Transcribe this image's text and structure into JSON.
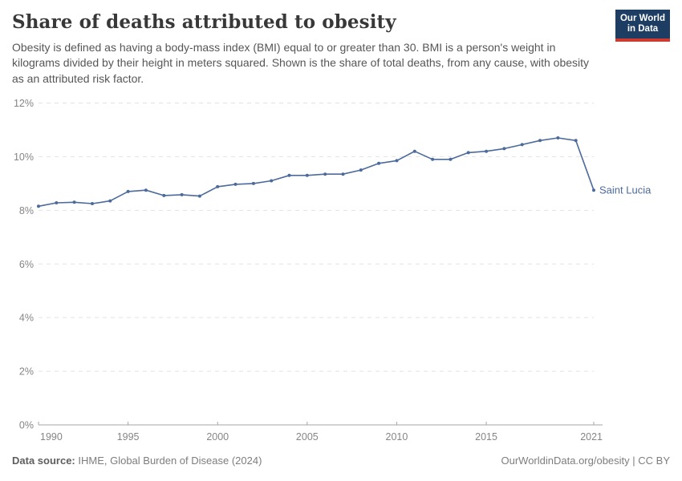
{
  "header": {
    "title": "Share of deaths attributed to obesity",
    "subtitle": "Obesity is defined as having a body-mass index (BMI) equal to or greater than 30. BMI is a person's weight in kilograms divided by their height in meters squared. Shown is the share of total deaths, from any cause, with obesity as an attributed risk factor.",
    "logo": {
      "line1": "Our World",
      "line2": "in Data",
      "bg_color": "#1d3d63",
      "accent_color": "#cf3a30"
    }
  },
  "chart_data": {
    "type": "line",
    "title": "Share of deaths attributed to obesity",
    "series": [
      {
        "name": "Saint Lucia",
        "color": "#4c6a9c",
        "x": [
          1990,
          1991,
          1992,
          1993,
          1994,
          1995,
          1996,
          1997,
          1998,
          1999,
          2000,
          2001,
          2002,
          2003,
          2004,
          2005,
          2006,
          2007,
          2008,
          2009,
          2010,
          2011,
          2012,
          2013,
          2014,
          2015,
          2016,
          2017,
          2018,
          2019,
          2020,
          2021
        ],
        "values": [
          8.15,
          8.28,
          8.3,
          8.25,
          8.35,
          8.7,
          8.75,
          8.55,
          8.58,
          8.53,
          8.88,
          8.97,
          9.0,
          9.1,
          9.3,
          9.3,
          9.35,
          9.35,
          9.5,
          9.75,
          9.85,
          10.2,
          9.9,
          9.9,
          10.15,
          10.2,
          10.3,
          10.45,
          10.6,
          10.7,
          10.6,
          8.75
        ]
      }
    ],
    "xlabel": "",
    "ylabel": "",
    "ylim": [
      0,
      12
    ],
    "y_ticks": [
      0,
      2,
      4,
      6,
      8,
      10,
      12
    ],
    "y_tick_suffix": "%",
    "x_ticks": [
      1990,
      1995,
      2000,
      2005,
      2010,
      2015,
      2021
    ],
    "grid": true,
    "legend_position": "end-of-line-label",
    "end_label": "Saint Lucia"
  },
  "footer": {
    "datasource_label": "Data source:",
    "datasource_value": " IHME, Global Burden of Disease (2024)",
    "credit": "OurWorldinData.org/obesity | CC BY"
  },
  "colors": {
    "line": "#4c6a9c",
    "gridline": "#e2e2e2",
    "axis_line": "#a5a5a5",
    "tick_text": "#858585",
    "title_text": "#383838",
    "subtitle_text": "#565656"
  }
}
